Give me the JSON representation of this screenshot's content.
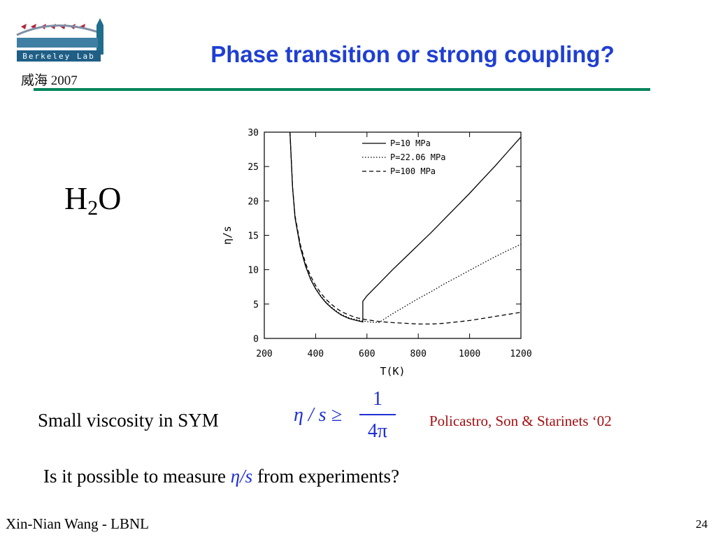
{
  "header": {
    "logo_text": "Berkeley Lab",
    "title": "Phase transition or strong coupling?",
    "venue": "威海 2007"
  },
  "colors": {
    "title": "#1f3fd1",
    "rule": "#00845a",
    "formula": "#1f2fd6",
    "citation": "#a40f12"
  },
  "content": {
    "molecule": {
      "base": "H",
      "subscript": "2",
      "tail": "O"
    },
    "sym_label": "Small viscosity in SYM",
    "bound": {
      "lhs": "η / s ≥",
      "numerator": "1",
      "denominator": "4π"
    },
    "citation": "Policastro, Son & Starinets ‘02",
    "question": {
      "before": "Is it possible to measure ",
      "ratio": "η/s",
      "after": " from experiments?"
    }
  },
  "footer": {
    "author": "Xin-Nian Wang - LBNL",
    "slide_number": "24"
  },
  "chart_data": {
    "type": "line",
    "xlabel": "T(K)",
    "ylabel": "η/s",
    "xlim": [
      200,
      1200
    ],
    "ylim": [
      0,
      30
    ],
    "xticks": [
      200,
      400,
      600,
      800,
      1000,
      1200
    ],
    "yticks": [
      0,
      5,
      10,
      15,
      20,
      25,
      30
    ],
    "grid": false,
    "legend_position": "top-right",
    "series": [
      {
        "name": "P=10 MPa",
        "style": "solid",
        "x": [
          300,
          310,
          320,
          340,
          360,
          380,
          400,
          420,
          440,
          460,
          480,
          500,
          530,
          560,
          584,
          584,
          600,
          650,
          700,
          750,
          800,
          850,
          900,
          950,
          1000,
          1050,
          1100,
          1150,
          1200
        ],
        "y": [
          30,
          22,
          17.5,
          13.3,
          10.6,
          8.6,
          7.2,
          6.1,
          5.2,
          4.5,
          3.9,
          3.4,
          2.9,
          2.6,
          2.4,
          5.4,
          6.2,
          8.1,
          10,
          11.8,
          13.6,
          15.4,
          17.3,
          19.2,
          21.1,
          23.1,
          25.1,
          27.2,
          29.3
        ]
      },
      {
        "name": "P=22.06 MPa",
        "style": "dotted",
        "x": [
          300,
          310,
          320,
          340,
          360,
          380,
          400,
          420,
          440,
          460,
          480,
          500,
          530,
          560,
          590,
          620,
          647,
          700,
          750,
          800,
          850,
          900,
          950,
          1000,
          1050,
          1100,
          1150,
          1200
        ],
        "y": [
          30,
          22,
          17.6,
          13.4,
          10.7,
          8.7,
          7.3,
          6.2,
          5.3,
          4.6,
          4,
          3.5,
          3,
          2.7,
          2.5,
          2.35,
          2.3,
          3.6,
          4.7,
          5.8,
          6.8,
          7.9,
          8.9,
          9.9,
          10.9,
          11.9,
          12.8,
          13.7
        ]
      },
      {
        "name": "P=100 MPa",
        "style": "dashed",
        "x": [
          300,
          310,
          320,
          340,
          360,
          380,
          400,
          420,
          440,
          460,
          480,
          500,
          530,
          560,
          600,
          650,
          700,
          750,
          800,
          850,
          900,
          950,
          1000,
          1050,
          1100,
          1150,
          1200
        ],
        "y": [
          30,
          22,
          17.8,
          13.7,
          11,
          9.1,
          7.7,
          6.6,
          5.7,
          5,
          4.4,
          3.9,
          3.4,
          3,
          2.7,
          2.45,
          2.3,
          2.2,
          2.1,
          2.1,
          2.2,
          2.4,
          2.6,
          2.9,
          3.2,
          3.5,
          3.8
        ]
      }
    ]
  }
}
